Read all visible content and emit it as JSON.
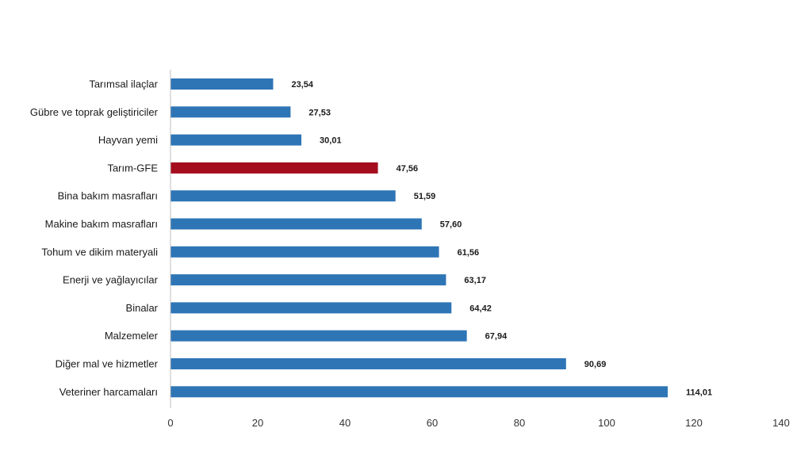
{
  "chart_data": {
    "type": "bar",
    "orientation": "horizontal",
    "categories": [
      "Tarımsal ilaçlar",
      "Gübre ve toprak geliştiriciler",
      "Hayvan yemi",
      "Tarım-GFE",
      "Bina bakım masrafları",
      "Makine bakım masrafları",
      "Tohum ve dikim materyali",
      "Enerji  ve yağlayıcılar",
      "Binalar",
      "Malzemeler",
      "Diğer mal ve hizmetler",
      "Veteriner harcamaları"
    ],
    "values": [
      23.54,
      27.53,
      30.01,
      47.56,
      51.59,
      57.6,
      61.56,
      63.17,
      64.42,
      67.94,
      90.69,
      114.01
    ],
    "value_labels": [
      "23,54",
      "27,53",
      "30,01",
      "47,56",
      "51,59",
      "57,60",
      "61,56",
      "63,17",
      "64,42",
      "67,94",
      "90,69",
      "114,01"
    ],
    "highlight_index": 3,
    "xlim": [
      0,
      140
    ],
    "xticks": [
      "0",
      "20",
      "40",
      "60",
      "80",
      "100",
      "120",
      "140"
    ],
    "grid": false,
    "colors": {
      "bar": "#2e75b6",
      "highlight": "#a50d1e",
      "axis": "#bfbfbf"
    }
  }
}
